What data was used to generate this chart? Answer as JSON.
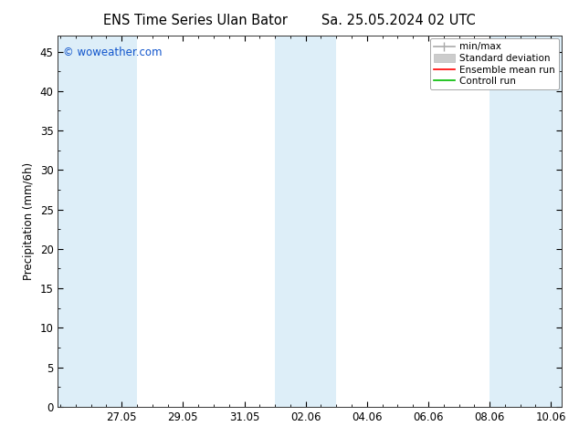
{
  "title_left": "ENS Time Series Ulan Bator",
  "title_right": "Sa. 25.05.2024 02 UTC",
  "ylabel": "Precipitation (mm/6h)",
  "ylim": [
    0,
    47
  ],
  "yticks": [
    0,
    5,
    10,
    15,
    20,
    25,
    30,
    35,
    40,
    45
  ],
  "xtick_labels": [
    "27.05",
    "29.05",
    "31.05",
    "02.06",
    "04.06",
    "06.06",
    "08.06",
    "10.06"
  ],
  "shaded_color": "#ddeef8",
  "watermark": "© woweather.com",
  "watermark_color": "#1155cc",
  "bg_color": "#ffffff",
  "title_fontsize": 10.5,
  "tick_label_fontsize": 8.5,
  "ylabel_fontsize": 8.5,
  "legend_fontsize": 7.5,
  "legend_labels": [
    "min/max",
    "Standard deviation",
    "Ensemble mean run",
    "Controll run"
  ],
  "legend_colors": [
    "#aaaaaa",
    "#cccccc",
    "#ff0000",
    "#00bb00"
  ]
}
